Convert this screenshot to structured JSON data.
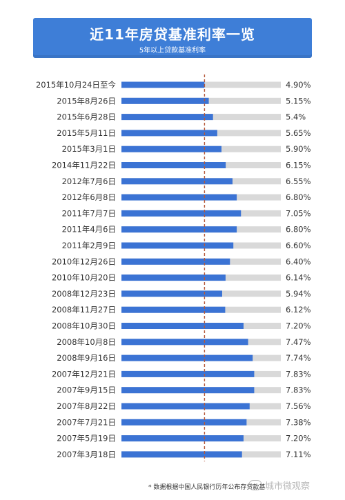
{
  "header": {
    "title": "近11年房贷基准利率一览",
    "subtitle": "5年以上贷款基准利率"
  },
  "chart_data": {
    "type": "bar",
    "orientation": "horizontal",
    "categories": [
      "2015年10月24日至今",
      "2015年8月26日",
      "2015年6月28日",
      "2015年5月11日",
      "2015年3月1日",
      "2014年11月22日",
      "2012年7月6日",
      "2012年6月8日",
      "2011年7月7日",
      "2011年4月6日",
      "2011年2月9日",
      "2010年12月26日",
      "2010年10月20日",
      "2008年12月23日",
      "2008年11月27日",
      "2008年10月30日",
      "2008年10月8日",
      "2008年9月16日",
      "2007年12月21日",
      "2007年9月15日",
      "2007年8月22日",
      "2007年7月21日",
      "2007年5月19日",
      "2007年3月18日"
    ],
    "values": [
      4.9,
      5.15,
      5.4,
      5.65,
      5.9,
      6.15,
      6.55,
      6.8,
      7.05,
      6.8,
      6.6,
      6.4,
      6.14,
      5.94,
      6.12,
      7.2,
      7.47,
      7.74,
      7.83,
      7.83,
      7.56,
      7.38,
      7.2,
      7.11
    ],
    "value_labels": [
      "4.90%",
      "5.15%",
      "5.4%",
      "5.65%",
      "5.90%",
      "6.15%",
      "6.55%",
      "6.80%",
      "7.05%",
      "6.80%",
      "6.60%",
      "6.40%",
      "6.14%",
      "5.94%",
      "6.12%",
      "7.20%",
      "7.47%",
      "7.74%",
      "7.83%",
      "7.83%",
      "7.56%",
      "7.38%",
      "7.20%",
      "7.11%"
    ],
    "reference_line": 4.9,
    "xlim": [
      0,
      9.4
    ],
    "colors": {
      "bar": "#3b73d4",
      "track": "#d9d9d9",
      "reference": "#b5583a",
      "label": "#333333"
    }
  },
  "footer": {
    "footnote": "* 数据根据中国人民银行历年公布存贷款基",
    "watermark": "城市微观察"
  }
}
